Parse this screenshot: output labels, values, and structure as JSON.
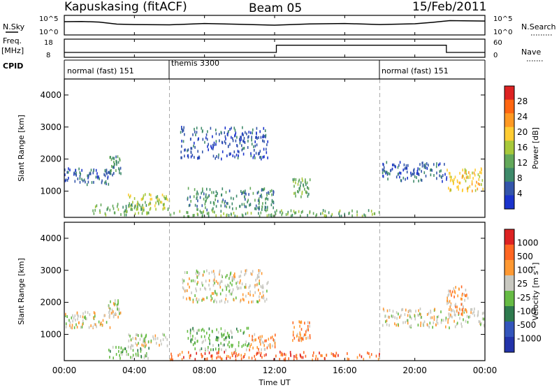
{
  "header": {
    "station": "Kapuskasing (fitACF)",
    "beam": "Beam 05",
    "date": "15/Feb/2011"
  },
  "top_panels": {
    "nsky_label": "N.Sky",
    "nsky_ticks": [
      "10^5",
      "10^0"
    ],
    "nsearch_ticks": [
      "10^5",
      "10^0"
    ],
    "nsearch_label": "N.Search",
    "freq_label": "Freq.",
    "freq_unit": "[MHz]",
    "freq_ticks": [
      "18",
      "8"
    ],
    "nave_ticks": [
      "60",
      "0"
    ],
    "nave_label": "Nave",
    "cpid_label": "CPID",
    "cpid_segments": [
      "normal (fast) 151",
      "themis 3300",
      "normal (fast) 151"
    ]
  },
  "colors": {
    "power": [
      "#1a33cc",
      "#3355aa",
      "#3e8a6a",
      "#63a85a",
      "#a7c83a",
      "#ffcc33",
      "#ff9922",
      "#ff6611",
      "#dd2222"
    ],
    "velocity": [
      "#2233aa",
      "#3355bb",
      "#2e7a4e",
      "#66bb44",
      "#c8c8c0",
      "#ff9933",
      "#ff6622",
      "#dd2222"
    ]
  },
  "chart_data": [
    {
      "type": "line",
      "name": "N.Sky / N.Search",
      "x_unit": "hours UT",
      "series": [
        {
          "values_x": [
            0,
            1,
            2,
            3,
            4,
            6,
            8,
            10,
            12,
            14,
            16,
            18,
            20,
            21,
            22,
            24
          ],
          "values_y": [
            4000,
            4500,
            3000,
            800,
            600,
            500,
            1200,
            700,
            400,
            900,
            1200,
            600,
            1000,
            2500,
            8000,
            6000
          ]
        }
      ],
      "ylim": [
        1,
        100000
      ],
      "yscale": "log"
    },
    {
      "type": "line",
      "name": "Freq. / Nave",
      "x_unit": "hours UT",
      "series": [
        {
          "values_x": [
            0,
            12.1,
            12.1,
            21.8,
            21.8,
            24
          ],
          "values_y": [
            10.5,
            10.5,
            14.8,
            14.8,
            10.5,
            10.5
          ]
        }
      ],
      "ylim": [
        8,
        18
      ]
    },
    {
      "type": "heatmap",
      "title": "Power",
      "ylabel": "Slant Range [km]",
      "colorbar_label": "Power [dB]",
      "colorbar_ticks": [
        "28",
        "24",
        "20",
        "16",
        "12",
        "8",
        "4"
      ],
      "xlim": [
        0,
        24
      ],
      "ylim": [
        180,
        4500
      ],
      "yticks": [
        "4000",
        "3000",
        "2000",
        "1000"
      ],
      "scatter_regions": [
        {
          "t0": 0.0,
          "t1": 2.6,
          "r0": 1200,
          "r1": 1700,
          "level": 1
        },
        {
          "t0": 2.5,
          "t1": 3.2,
          "r0": 1500,
          "r1": 2100,
          "level": 2
        },
        {
          "t0": 6.6,
          "t1": 11.6,
          "r0": 2000,
          "r1": 3000,
          "level": 1
        },
        {
          "t0": 3.6,
          "t1": 6.0,
          "r0": 400,
          "r1": 900,
          "level": 4
        },
        {
          "t0": 1.6,
          "t1": 4.8,
          "r0": 250,
          "r1": 600,
          "level": 3
        },
        {
          "t0": 7.0,
          "t1": 12.0,
          "r0": 400,
          "r1": 1100,
          "level": 2
        },
        {
          "t0": 13.0,
          "t1": 14.0,
          "r0": 800,
          "r1": 1400,
          "level": 3
        },
        {
          "t0": 6.0,
          "t1": 18.0,
          "r0": 200,
          "r1": 400,
          "level": 3
        },
        {
          "t0": 18.0,
          "t1": 21.8,
          "r0": 1300,
          "r1": 1900,
          "level": 1
        },
        {
          "t0": 21.8,
          "t1": 23.9,
          "r0": 1000,
          "r1": 1700,
          "level": 5
        }
      ]
    },
    {
      "type": "heatmap",
      "title": "Velocity",
      "ylabel": "Slant Range [km]",
      "colorbar_label": "Velocity [m s^-1]",
      "colorbar_ticks": [
        "1000",
        "500",
        "100",
        "25",
        "-25",
        "-100",
        "-500",
        "-1000"
      ],
      "xlim": [
        0,
        24
      ],
      "ylim": [
        180,
        4500
      ],
      "yticks": [
        "4000",
        "3000",
        "2000",
        "1000"
      ],
      "scatter_regions": [
        {
          "t0": 0.0,
          "t1": 2.6,
          "r0": 1200,
          "r1": 1700,
          "level": 4
        },
        {
          "t0": 2.5,
          "t1": 3.2,
          "r0": 1500,
          "r1": 2100,
          "level": 4
        },
        {
          "t0": 6.6,
          "t1": 11.6,
          "r0": 2000,
          "r1": 3000,
          "level": 4
        },
        {
          "t0": 3.6,
          "t1": 6.0,
          "r0": 600,
          "r1": 1000,
          "level": 4
        },
        {
          "t0": 2.5,
          "t1": 4.8,
          "r0": 250,
          "r1": 600,
          "level": 3
        },
        {
          "t0": 7.0,
          "t1": 10.5,
          "r0": 500,
          "r1": 1200,
          "level": 3
        },
        {
          "t0": 10.5,
          "t1": 12.0,
          "r0": 500,
          "r1": 1000,
          "level": 5
        },
        {
          "t0": 13.0,
          "t1": 14.0,
          "r0": 800,
          "r1": 1400,
          "level": 5
        },
        {
          "t0": 6.0,
          "t1": 18.0,
          "r0": 200,
          "r1": 450,
          "level": 6
        },
        {
          "t0": 18.0,
          "t1": 24.0,
          "r0": 1200,
          "r1": 1800,
          "level": 4
        },
        {
          "t0": 21.8,
          "t1": 23.0,
          "r0": 1600,
          "r1": 2500,
          "level": 5
        }
      ]
    }
  ],
  "xaxis": {
    "label": "Time UT",
    "ticks": [
      "00:00",
      "04:00",
      "08:00",
      "12:00",
      "16:00",
      "20:00",
      "00:00"
    ]
  }
}
